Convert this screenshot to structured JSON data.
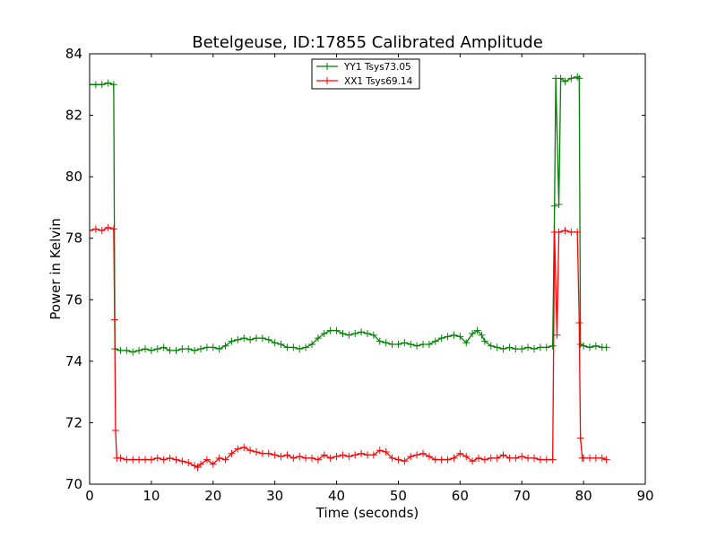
{
  "chart_data": {
    "type": "line",
    "title": "Betelgeuse, ID:17855 Calibrated Amplitude",
    "xlabel": "Time (seconds)",
    "ylabel": "Power in Kelvin",
    "xlim": [
      0,
      90
    ],
    "ylim": [
      70,
      84
    ],
    "xticks": [
      0,
      10,
      20,
      30,
      40,
      50,
      60,
      70,
      80,
      90
    ],
    "yticks": [
      70,
      72,
      74,
      76,
      78,
      80,
      82,
      84
    ],
    "grid": false,
    "legend_position": "top-center",
    "marker": "+",
    "series": [
      {
        "name": "YY1 Tsys73.05",
        "color": "#008000",
        "points": [
          [
            0.0,
            83.0
          ],
          [
            1.0,
            83.0
          ],
          [
            2.0,
            83.0
          ],
          [
            3.0,
            83.05
          ],
          [
            3.9,
            83.0
          ],
          [
            4.1,
            74.4
          ],
          [
            5.0,
            74.35
          ],
          [
            6.0,
            74.35
          ],
          [
            7.0,
            74.3
          ],
          [
            8.0,
            74.35
          ],
          [
            9.0,
            74.4
          ],
          [
            10.0,
            74.35
          ],
          [
            11.0,
            74.4
          ],
          [
            12.0,
            74.45
          ],
          [
            13.0,
            74.35
          ],
          [
            14.0,
            74.35
          ],
          [
            15.0,
            74.4
          ],
          [
            16.0,
            74.4
          ],
          [
            17.0,
            74.35
          ],
          [
            18.0,
            74.4
          ],
          [
            19.0,
            74.45
          ],
          [
            20.0,
            74.45
          ],
          [
            21.0,
            74.4
          ],
          [
            22.0,
            74.5
          ],
          [
            23.0,
            74.65
          ],
          [
            24.0,
            74.7
          ],
          [
            25.0,
            74.75
          ],
          [
            26.0,
            74.7
          ],
          [
            27.0,
            74.75
          ],
          [
            28.0,
            74.75
          ],
          [
            29.0,
            74.7
          ],
          [
            30.0,
            74.6
          ],
          [
            31.0,
            74.55
          ],
          [
            32.0,
            74.45
          ],
          [
            33.0,
            74.45
          ],
          [
            34.0,
            74.4
          ],
          [
            35.0,
            74.45
          ],
          [
            36.0,
            74.55
          ],
          [
            37.0,
            74.75
          ],
          [
            38.0,
            74.9
          ],
          [
            39.0,
            75.0
          ],
          [
            40.0,
            75.0
          ],
          [
            41.0,
            74.9
          ],
          [
            42.0,
            74.85
          ],
          [
            43.0,
            74.9
          ],
          [
            44.0,
            74.95
          ],
          [
            45.0,
            74.9
          ],
          [
            46.0,
            74.85
          ],
          [
            47.0,
            74.65
          ],
          [
            48.0,
            74.6
          ],
          [
            49.0,
            74.55
          ],
          [
            50.0,
            74.55
          ],
          [
            51.0,
            74.6
          ],
          [
            52.0,
            74.55
          ],
          [
            53.0,
            74.5
          ],
          [
            54.0,
            74.55
          ],
          [
            55.0,
            74.55
          ],
          [
            56.0,
            74.65
          ],
          [
            57.0,
            74.75
          ],
          [
            58.0,
            74.8
          ],
          [
            59.0,
            74.85
          ],
          [
            60.0,
            74.8
          ],
          [
            61.0,
            74.6
          ],
          [
            62.0,
            74.9
          ],
          [
            62.8,
            75.0
          ],
          [
            63.5,
            74.85
          ],
          [
            64.0,
            74.65
          ],
          [
            65.0,
            74.5
          ],
          [
            66.0,
            74.45
          ],
          [
            67.0,
            74.4
          ],
          [
            68.0,
            74.45
          ],
          [
            69.0,
            74.4
          ],
          [
            70.0,
            74.4
          ],
          [
            71.0,
            74.45
          ],
          [
            72.0,
            74.4
          ],
          [
            73.0,
            74.45
          ],
          [
            74.0,
            74.45
          ],
          [
            75.0,
            74.5
          ],
          [
            75.3,
            79.05
          ],
          [
            75.5,
            83.2
          ],
          [
            76.0,
            79.1
          ],
          [
            76.3,
            83.2
          ],
          [
            77.0,
            83.1
          ],
          [
            78.0,
            83.2
          ],
          [
            79.0,
            83.25
          ],
          [
            79.3,
            83.2
          ],
          [
            79.5,
            74.55
          ],
          [
            80.0,
            74.5
          ],
          [
            81.0,
            74.45
          ],
          [
            82.0,
            74.5
          ],
          [
            83.0,
            74.45
          ],
          [
            83.7,
            74.45
          ]
        ]
      },
      {
        "name": "XX1 Tsys69.14",
        "color": "#ff0000",
        "points": [
          [
            0.0,
            78.25
          ],
          [
            1.0,
            78.3
          ],
          [
            2.0,
            78.25
          ],
          [
            3.0,
            78.35
          ],
          [
            3.9,
            78.3
          ],
          [
            4.05,
            75.35
          ],
          [
            4.2,
            71.75
          ],
          [
            4.4,
            70.85
          ],
          [
            5.0,
            70.85
          ],
          [
            6.0,
            70.8
          ],
          [
            7.0,
            70.8
          ],
          [
            8.0,
            70.8
          ],
          [
            9.0,
            70.8
          ],
          [
            10.0,
            70.8
          ],
          [
            11.0,
            70.85
          ],
          [
            12.0,
            70.8
          ],
          [
            13.0,
            70.85
          ],
          [
            14.0,
            70.8
          ],
          [
            15.0,
            70.75
          ],
          [
            16.0,
            70.7
          ],
          [
            17.0,
            70.6
          ],
          [
            17.5,
            70.55
          ],
          [
            18.0,
            70.65
          ],
          [
            19.0,
            70.8
          ],
          [
            20.0,
            70.65
          ],
          [
            21.0,
            70.85
          ],
          [
            22.0,
            70.8
          ],
          [
            23.0,
            71.0
          ],
          [
            24.0,
            71.15
          ],
          [
            25.0,
            71.2
          ],
          [
            26.0,
            71.1
          ],
          [
            27.0,
            71.05
          ],
          [
            28.0,
            71.0
          ],
          [
            29.0,
            71.0
          ],
          [
            30.0,
            70.95
          ],
          [
            31.0,
            70.9
          ],
          [
            32.0,
            70.95
          ],
          [
            33.0,
            70.85
          ],
          [
            34.0,
            70.9
          ],
          [
            35.0,
            70.85
          ],
          [
            36.0,
            70.85
          ],
          [
            37.0,
            70.8
          ],
          [
            38.0,
            70.95
          ],
          [
            39.0,
            70.85
          ],
          [
            40.0,
            70.9
          ],
          [
            41.0,
            70.95
          ],
          [
            42.0,
            70.9
          ],
          [
            43.0,
            70.95
          ],
          [
            44.0,
            71.0
          ],
          [
            45.0,
            70.95
          ],
          [
            46.0,
            70.95
          ],
          [
            47.0,
            71.1
          ],
          [
            48.0,
            71.05
          ],
          [
            49.0,
            70.85
          ],
          [
            50.0,
            70.8
          ],
          [
            51.0,
            70.75
          ],
          [
            52.0,
            70.9
          ],
          [
            53.0,
            70.95
          ],
          [
            54.0,
            71.0
          ],
          [
            55.0,
            70.9
          ],
          [
            56.0,
            70.8
          ],
          [
            57.0,
            70.8
          ],
          [
            58.0,
            70.8
          ],
          [
            59.0,
            70.85
          ],
          [
            60.0,
            71.0
          ],
          [
            61.0,
            70.9
          ],
          [
            62.0,
            70.75
          ],
          [
            63.0,
            70.85
          ],
          [
            64.0,
            70.8
          ],
          [
            65.0,
            70.85
          ],
          [
            66.0,
            70.85
          ],
          [
            67.0,
            70.95
          ],
          [
            68.0,
            70.85
          ],
          [
            69.0,
            70.85
          ],
          [
            70.0,
            70.9
          ],
          [
            71.0,
            70.85
          ],
          [
            72.0,
            70.85
          ],
          [
            73.0,
            70.8
          ],
          [
            74.0,
            70.8
          ],
          [
            75.0,
            70.8
          ],
          [
            75.3,
            78.2
          ],
          [
            75.7,
            74.85
          ],
          [
            76.0,
            78.2
          ],
          [
            77.0,
            78.25
          ],
          [
            78.0,
            78.2
          ],
          [
            79.0,
            78.2
          ],
          [
            79.3,
            75.25
          ],
          [
            79.5,
            71.5
          ],
          [
            79.8,
            70.85
          ],
          [
            80.0,
            70.85
          ],
          [
            81.0,
            70.85
          ],
          [
            82.0,
            70.85
          ],
          [
            83.0,
            70.85
          ],
          [
            83.7,
            70.8
          ]
        ]
      }
    ]
  }
}
